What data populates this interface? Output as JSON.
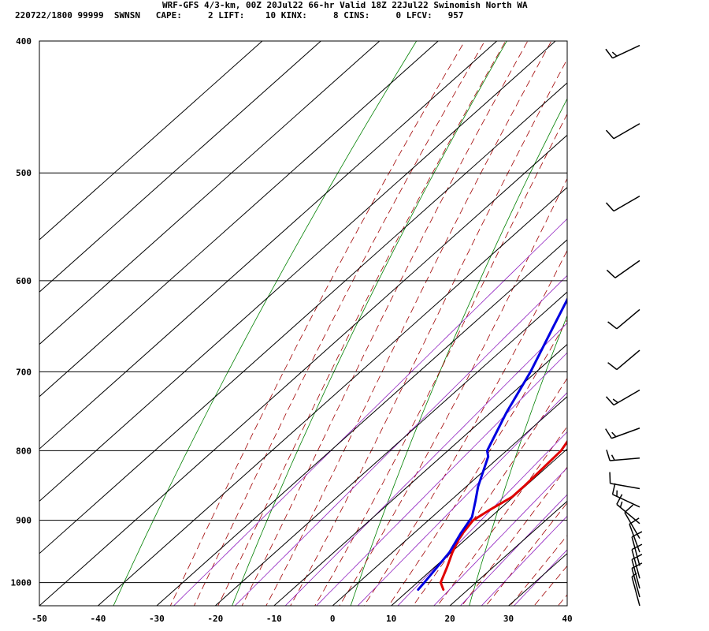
{
  "header": {
    "title": "WRF-GFS 4/3-km, 00Z 20Jul22 66-hr Valid 18Z 22Jul22 Swinomish North WA",
    "indices": "220722/1800 99999  SWNSN   CAPE:     2 LIFT:    10 KINX:     8 CINS:     0 LFCV:   957"
  },
  "colors": {
    "temperature": "#e00000",
    "dewpoint": "#0000e0",
    "isotherm": "#000000",
    "dry_adiabat": "#008000",
    "moist_adiabat": "#a00000",
    "mixing_ratio": "#9020c0",
    "barb": "#000000"
  },
  "chart_data": {
    "type": "line",
    "subtype": "skew-t log-p sounding",
    "title": "",
    "xlabel": "",
    "ylabel": "",
    "xlim": [
      -50,
      40
    ],
    "ylim": [
      1040,
      400
    ],
    "y_log_scale": true,
    "grid": true,
    "x_ticks": [
      "-50",
      "-40",
      "-30",
      "-20",
      "-10",
      "0",
      "10",
      "20",
      "30",
      "40"
    ],
    "y_ticks": [
      "400",
      "500",
      "600",
      "700",
      "800",
      "900",
      "1000"
    ],
    "series": [
      {
        "key": "temperature",
        "points": [
          {
            "p": 1012,
            "t": 15.8
          },
          {
            "p": 1000,
            "t": 14.0
          },
          {
            "p": 975,
            "t": 12.2
          },
          {
            "p": 950,
            "t": 10.2
          },
          {
            "p": 925,
            "t": 8.5
          },
          {
            "p": 900,
            "t": 7.6
          },
          {
            "p": 885,
            "t": 8.4
          },
          {
            "p": 865,
            "t": 9.8
          },
          {
            "p": 850,
            "t": 9.8
          },
          {
            "p": 800,
            "t": 9.3
          },
          {
            "p": 750,
            "t": 6.5
          },
          {
            "p": 700,
            "t": 3.6
          },
          {
            "p": 650,
            "t": 0.2
          },
          {
            "p": 600,
            "t": -3.5
          },
          {
            "p": 550,
            "t": -7.9
          },
          {
            "p": 500,
            "t": -12.8
          },
          {
            "p": 450,
            "t": -17.4
          },
          {
            "p": 415,
            "t": -20.5
          }
        ]
      },
      {
        "key": "dewpoint",
        "points": [
          {
            "p": 1012,
            "t": 11.5
          },
          {
            "p": 1000,
            "t": 11.2
          },
          {
            "p": 950,
            "t": 9.7
          },
          {
            "p": 920,
            "t": 8.0
          },
          {
            "p": 895,
            "t": 6.8
          },
          {
            "p": 870,
            "t": 4.2
          },
          {
            "p": 850,
            "t": 2.0
          },
          {
            "p": 808,
            "t": -2.0
          },
          {
            "p": 800,
            "t": -3.3
          },
          {
            "p": 750,
            "t": -7.3
          },
          {
            "p": 700,
            "t": -11.0
          },
          {
            "p": 650,
            "t": -15.6
          },
          {
            "p": 600,
            "t": -20.5
          },
          {
            "p": 550,
            "t": -27.0
          },
          {
            "p": 535,
            "t": -31.5
          },
          {
            "p": 500,
            "t": -33.5
          },
          {
            "p": 480,
            "t": -34.5
          },
          {
            "p": 440,
            "t": -35.0
          },
          {
            "p": 415,
            "t": -35.5
          }
        ]
      }
    ],
    "wind_barbs": [
      {
        "p": 403,
        "dir": 245,
        "spd": 15
      },
      {
        "p": 460,
        "dir": 240,
        "spd": 10
      },
      {
        "p": 520,
        "dir": 240,
        "spd": 10
      },
      {
        "p": 580,
        "dir": 235,
        "spd": 10
      },
      {
        "p": 630,
        "dir": 230,
        "spd": 10
      },
      {
        "p": 675,
        "dir": 230,
        "spd": 10
      },
      {
        "p": 722,
        "dir": 240,
        "spd": 15
      },
      {
        "p": 770,
        "dir": 250,
        "spd": 15
      },
      {
        "p": 810,
        "dir": 265,
        "spd": 15
      },
      {
        "p": 853,
        "dir": 280,
        "spd": 10
      },
      {
        "p": 880,
        "dir": 295,
        "spd": 15
      },
      {
        "p": 905,
        "dir": 310,
        "spd": 15
      },
      {
        "p": 928,
        "dir": 330,
        "spd": 10
      },
      {
        "p": 950,
        "dir": 340,
        "spd": 10
      },
      {
        "p": 972,
        "dir": 345,
        "spd": 10
      },
      {
        "p": 993,
        "dir": 345,
        "spd": 10
      },
      {
        "p": 1010,
        "dir": 345,
        "spd": 10
      },
      {
        "p": 1025,
        "dir": 345,
        "spd": 10
      },
      {
        "p": 1040,
        "dir": 345,
        "spd": 5
      }
    ]
  }
}
